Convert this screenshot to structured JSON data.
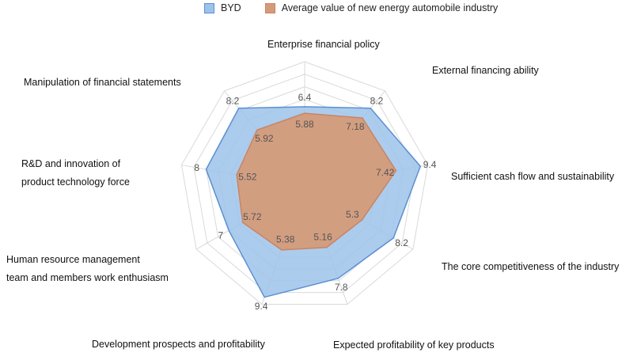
{
  "legend": {
    "byd": "BYD",
    "industry": "Average value of new energy automobile industry"
  },
  "colors": {
    "byd_fill": "#9dc3ea",
    "byd_stroke": "#5b8fd1",
    "industry_fill": "#d49b7a",
    "industry_stroke": "#c98463",
    "grid": "#d9d9d9",
    "value_text": "#555555"
  },
  "chart_data": {
    "type": "radar",
    "title": "",
    "axes": [
      "Enterprise financial policy",
      "External financing ability",
      "Sufficient cash flow and sustainability",
      "The core competitiveness of the industry",
      "Expected profitability of key products",
      "Development prospects and profitability",
      "Human resource management team and members work enthusiasm",
      "R&D and innovation of product technology force",
      "Manipulation of financial statements"
    ],
    "axis_label_lines": [
      [
        "Enterprise financial policy"
      ],
      [
        "External financing ability"
      ],
      [
        "Sufficient cash flow and sustainability"
      ],
      [
        "The core competitiveness of the industry"
      ],
      [
        "Expected profitability of key products"
      ],
      [
        "Development prospects and profitability"
      ],
      [
        "Human resource management",
        "team and members work enthusiasm"
      ],
      [
        "R&D and innovation of",
        "product technology force"
      ],
      [
        "Manipulation of financial statements"
      ]
    ],
    "series": [
      {
        "name": "BYD",
        "values": [
          6.4,
          8.2,
          9.4,
          8.2,
          7.8,
          9.4,
          7,
          8,
          8.2
        ]
      },
      {
        "name": "Average value of new energy automobile industry",
        "values": [
          5.88,
          7.18,
          7.42,
          5.3,
          5.16,
          5.38,
          5.72,
          5.52,
          5.92
        ]
      }
    ],
    "value_labels": {
      "BYD": [
        "6.4",
        "8.2",
        "9.4",
        "8.2",
        "7.8",
        "9.4",
        "7",
        "8",
        "8.2"
      ],
      "Average value of new energy automobile industry": [
        "5.88",
        "7.18",
        "7.42",
        "5.3",
        "5.16",
        "5.38",
        "5.72",
        "5.52",
        "5.92"
      ]
    },
    "range": [
      0,
      10
    ],
    "grid_levels": 10,
    "grid": true,
    "legend_position": "top"
  }
}
